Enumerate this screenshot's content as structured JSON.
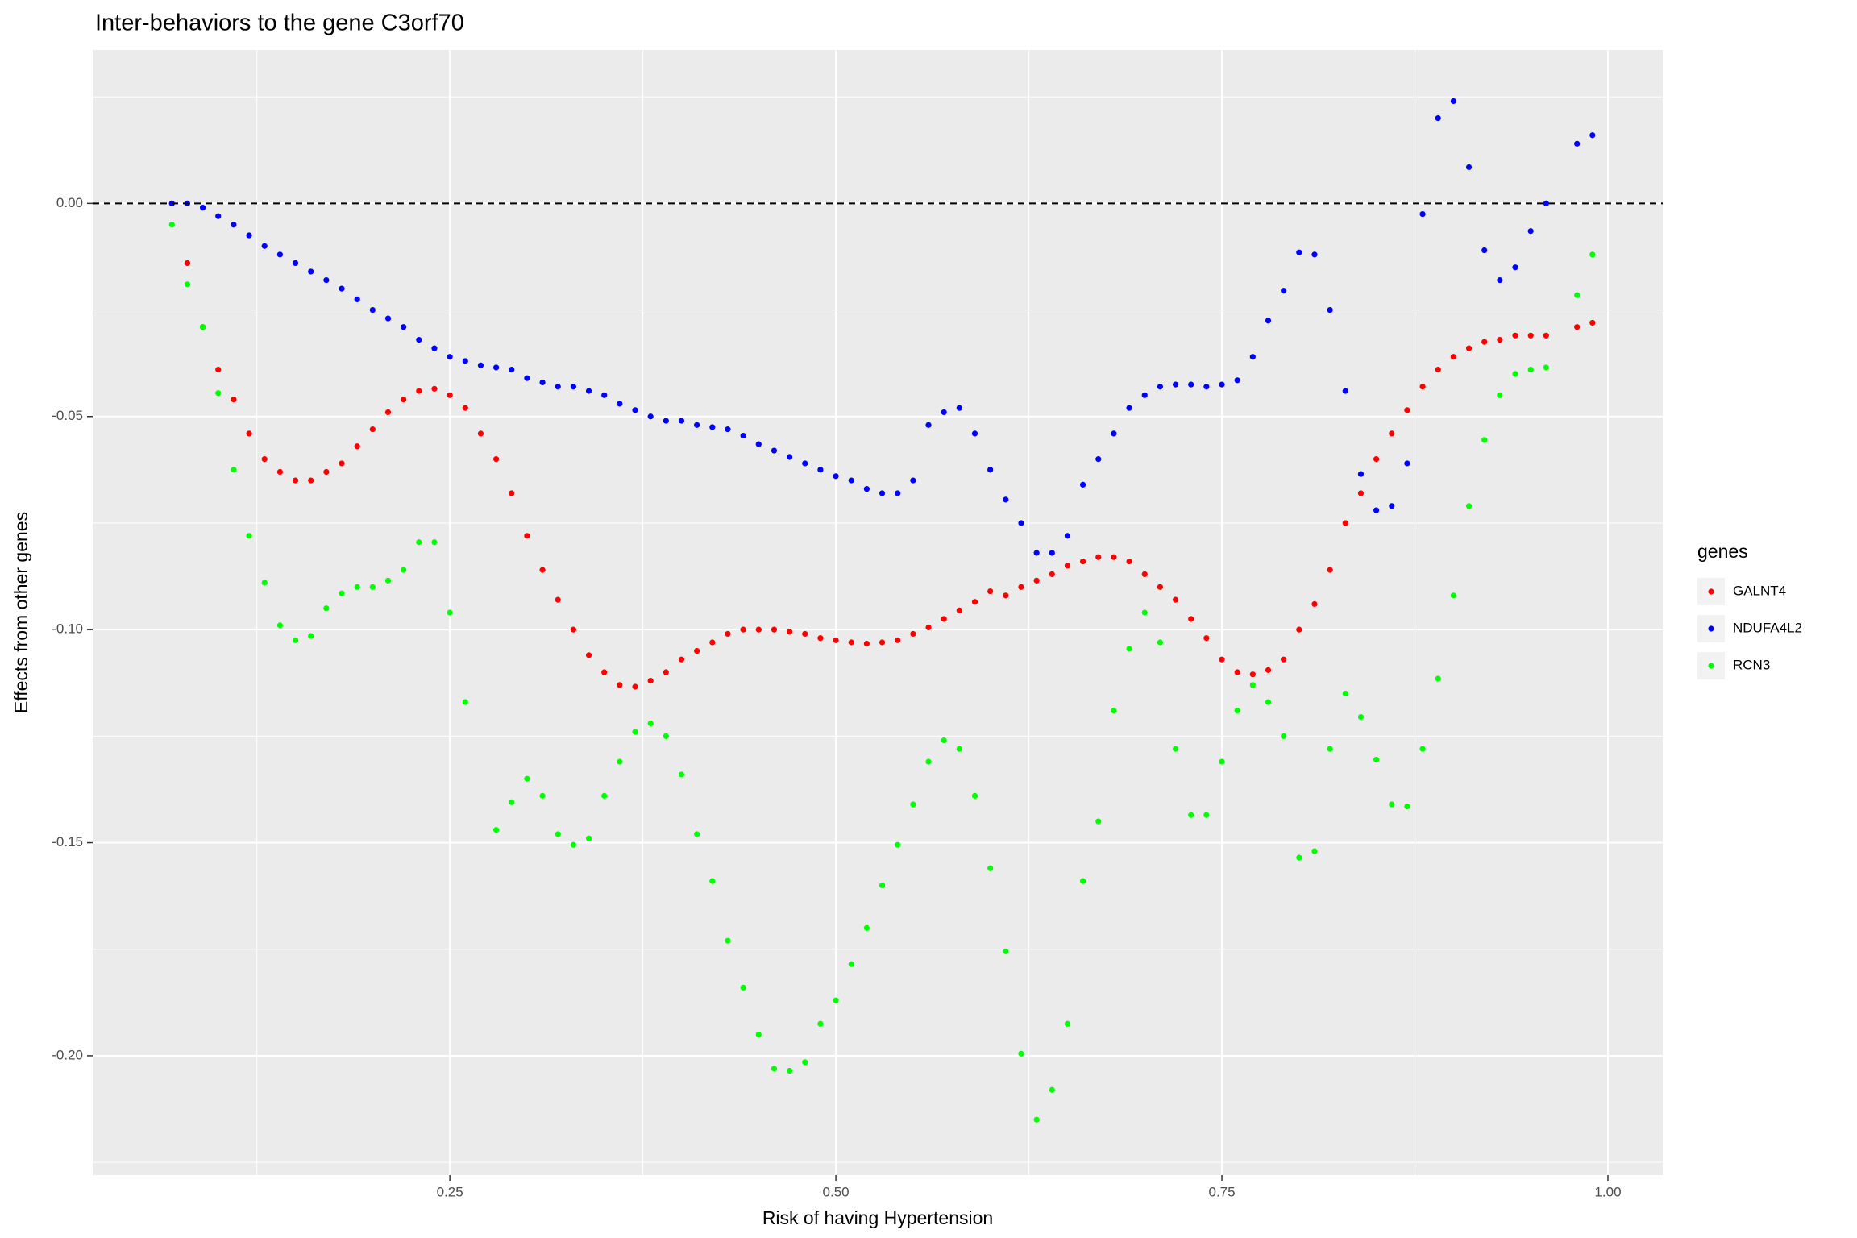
{
  "chart_data": {
    "type": "scatter",
    "title": "Inter-behaviors to the gene C3orf70",
    "x_label": "Risk of having Hypertension",
    "y_label": "Effects from other genes",
    "legend_title": "genes",
    "grid": true,
    "minor_grid": true,
    "hline": 0,
    "xlim": [
      0.0187,
      1.0355
    ],
    "ylim": [
      -0.228,
      0.036
    ],
    "xticks": [
      0.25,
      {
        "value": 0.5,
        "label": "0.50"
      },
      0.75,
      {
        "value": 1,
        "label": "1.00"
      }
    ],
    "yticks": [
      {
        "value": 0,
        "label": "0.00"
      },
      -0.05,
      {
        "value": -0.1,
        "label": "-0.10"
      },
      -0.15,
      {
        "value": -0.2,
        "label": "-0.20"
      }
    ],
    "x": [
      0.07,
      0.08,
      0.09,
      0.1,
      0.11,
      0.12,
      0.13,
      0.14,
      0.15,
      0.16,
      0.17,
      0.18,
      0.19,
      0.2,
      0.21,
      0.22,
      0.23,
      0.24,
      0.25,
      0.26,
      0.27,
      0.28,
      0.29,
      0.3,
      0.31,
      0.32,
      0.33,
      0.34,
      0.35,
      0.36,
      0.37,
      0.38,
      0.39,
      0.4,
      0.41,
      0.42,
      0.43,
      0.44,
      0.45,
      0.46,
      0.47,
      0.48,
      0.49,
      0.5,
      0.51,
      0.52,
      0.53,
      0.54,
      0.55,
      0.56,
      0.57,
      0.58,
      0.59,
      0.6,
      0.61,
      0.62,
      0.63,
      0.64,
      0.65,
      0.66,
      0.67,
      0.68,
      0.69,
      0.7,
      0.71,
      0.72,
      0.73,
      0.74,
      0.75,
      0.76,
      0.77,
      0.78,
      0.79,
      0.8,
      0.81,
      0.82,
      0.83,
      0.84,
      0.85,
      0.86,
      0.87,
      0.88,
      0.89,
      0.9,
      0.91,
      0.92,
      0.93,
      0.94,
      0.95,
      0.96,
      0.98,
      0.99
    ],
    "series": [
      {
        "name": "GALNT4",
        "color": "#ff0000",
        "values": [
          0,
          -0.014,
          -0.029,
          -0.039,
          -0.046,
          -0.054,
          -0.06,
          -0.063,
          -0.065,
          -0.065,
          -0.063,
          -0.061,
          -0.057,
          -0.053,
          -0.049,
          -0.046,
          -0.044,
          -0.0435,
          -0.045,
          -0.048,
          -0.054,
          -0.06,
          -0.068,
          -0.078,
          -0.086,
          -0.093,
          -0.1,
          -0.106,
          -0.11,
          -0.113,
          -0.1134,
          -0.112,
          -0.11,
          -0.107,
          -0.105,
          -0.103,
          -0.101,
          -0.1,
          -0.1,
          -0.1,
          -0.1005,
          -0.101,
          -0.102,
          -0.1025,
          -0.103,
          -0.1033,
          -0.103,
          -0.1025,
          -0.101,
          -0.0995,
          -0.0975,
          -0.0955,
          -0.0935,
          -0.091,
          -0.092,
          -0.09,
          -0.0885,
          -0.087,
          -0.085,
          -0.084,
          -0.083,
          -0.083,
          -0.084,
          -0.087,
          -0.09,
          -0.093,
          -0.0975,
          -0.102,
          -0.107,
          -0.11,
          -0.1105,
          -0.1095,
          -0.107,
          -0.1,
          -0.094,
          -0.086,
          -0.075,
          -0.068,
          -0.06,
          -0.054,
          -0.0485,
          -0.043,
          -0.039,
          -0.036,
          -0.034,
          -0.0325,
          -0.032,
          -0.031,
          -0.031,
          -0.031,
          -0.029,
          -0.028
        ]
      },
      {
        "name": "NDUFA4L2",
        "color": "#0000ff",
        "values": [
          0,
          0,
          -0.001,
          -0.003,
          -0.005,
          -0.0075,
          -0.01,
          -0.012,
          -0.014,
          -0.016,
          -0.018,
          -0.02,
          -0.0225,
          -0.025,
          -0.027,
          -0.029,
          -0.032,
          -0.034,
          -0.036,
          -0.037,
          -0.038,
          -0.0385,
          -0.039,
          -0.041,
          -0.042,
          -0.043,
          -0.043,
          -0.044,
          -0.045,
          -0.047,
          -0.0485,
          -0.05,
          -0.051,
          -0.051,
          -0.052,
          -0.0525,
          -0.053,
          -0.0545,
          -0.0565,
          -0.058,
          -0.0595,
          -0.061,
          -0.0625,
          -0.064,
          -0.065,
          -0.067,
          -0.068,
          -0.068,
          -0.065,
          -0.052,
          -0.049,
          -0.048,
          -0.054,
          -0.0625,
          -0.0695,
          -0.075,
          -0.082,
          -0.082,
          -0.078,
          -0.066,
          -0.06,
          -0.054,
          -0.048,
          -0.045,
          -0.043,
          -0.0425,
          -0.0425,
          -0.043,
          -0.0425,
          -0.0415,
          -0.036,
          -0.0275,
          -0.0205,
          -0.0115,
          -0.012,
          -0.025,
          -0.044,
          -0.0635,
          -0.072,
          -0.071,
          -0.061,
          -0.0025,
          0.02,
          0.024,
          0.0085,
          -0.011,
          -0.018,
          -0.015,
          -0.0065,
          0,
          0.014,
          0.016
        ]
      },
      {
        "name": "RCN3",
        "color": "#00ff00",
        "values": [
          -0.005,
          -0.019,
          -0.029,
          -0.0445,
          -0.0625,
          -0.078,
          -0.089,
          -0.099,
          -0.1025,
          -0.1015,
          -0.095,
          -0.0915,
          -0.09,
          -0.09,
          -0.0885,
          -0.086,
          -0.0795,
          -0.0795,
          -0.096,
          -0.117,
          null,
          -0.147,
          -0.1405,
          -0.135,
          -0.139,
          -0.148,
          -0.1505,
          -0.149,
          -0.139,
          -0.131,
          -0.124,
          -0.122,
          -0.125,
          -0.134,
          -0.148,
          -0.159,
          -0.173,
          -0.184,
          -0.195,
          -0.203,
          -0.2035,
          -0.2015,
          -0.1925,
          -0.187,
          -0.1785,
          -0.17,
          -0.16,
          -0.1505,
          -0.141,
          -0.131,
          -0.126,
          -0.128,
          -0.139,
          -0.156,
          -0.1755,
          -0.1995,
          -0.215,
          -0.208,
          -0.1925,
          -0.159,
          -0.145,
          -0.119,
          -0.1045,
          -0.096,
          -0.103,
          -0.128,
          -0.1435,
          -0.1435,
          -0.131,
          -0.119,
          -0.113,
          -0.117,
          -0.125,
          -0.1535,
          -0.152,
          -0.128,
          -0.115,
          -0.1205,
          -0.1305,
          -0.141,
          -0.1415,
          -0.128,
          -0.1115,
          -0.092,
          -0.071,
          -0.0555,
          -0.045,
          -0.04,
          -0.039,
          -0.0385,
          -0.0215,
          -0.012
        ]
      }
    ]
  }
}
